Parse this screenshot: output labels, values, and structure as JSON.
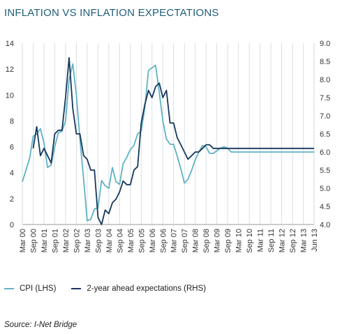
{
  "title": "INFLATION VS INFLATION EXPECTATIONS",
  "source": "Source: I-Net Bridge",
  "colors": {
    "cpi": "#5eb3c2",
    "expectations": "#17365d",
    "grid": "#cfd8dc",
    "title": "#1f5e7a"
  },
  "chart_data": {
    "type": "line",
    "title": "INFLATION VS INFLATION EXPECTATIONS",
    "categories": [
      "Mar 00",
      "Sep 00",
      "Mar 01",
      "Sep 01",
      "Mar 02",
      "Sep 02",
      "Mar 03",
      "Sep 03",
      "Mar 04",
      "Sep 04",
      "Mar 05",
      "Sep 05",
      "Mar 06",
      "Sep 06",
      "Mar 07",
      "Sep 07",
      "Mar 08",
      "Sep 08",
      "Mar 09",
      "Sep 09",
      "Mar 10",
      "Sep 10",
      "Mar 11",
      "Sep 11",
      "Mar 12",
      "Sep 12",
      "Mar 13",
      "Jun 13"
    ],
    "y_left": {
      "ticks": [
        0,
        2,
        4,
        6,
        8,
        10,
        12,
        14
      ],
      "ylim": [
        0,
        14
      ]
    },
    "y_right": {
      "ticks": [
        "4.0",
        "4.5",
        "5.0",
        "5.5",
        "6.0",
        "6.5",
        "7.0",
        "7.5",
        "8.0",
        "8.5",
        "9.0"
      ],
      "ylim": [
        4.0,
        9.0
      ]
    },
    "grid": "vertical",
    "legend_position": "bottom-left",
    "series": [
      {
        "name": "CPI (LHS)",
        "axis": "left",
        "x": [
          0,
          0.67,
          1.0,
          1.33,
          1.67,
          2.0,
          2.33,
          2.67,
          3.0,
          3.33,
          3.67,
          4.0,
          4.33,
          4.67,
          5.0,
          5.33,
          5.67,
          6.0,
          6.33,
          6.67,
          7.0,
          7.33,
          7.67,
          8.0,
          8.33,
          8.67,
          9.0,
          9.33,
          9.67,
          10.0,
          10.33,
          10.67,
          11.0,
          11.33,
          11.67,
          12.0,
          12.33,
          12.67,
          13.0,
          13.33,
          13.67,
          14.0,
          14.33,
          14.67,
          15.0,
          15.33,
          15.67,
          16.0,
          16.33,
          16.67,
          17.0,
          17.33,
          17.67,
          18.0,
          18.33,
          18.67,
          19.0,
          19.33,
          19.67,
          20.0,
          20.33,
          20.67,
          21.0,
          21.33,
          21.67,
          22.0,
          22.33,
          22.67,
          23.0,
          23.33,
          23.67,
          24.0,
          24.33,
          24.67,
          25.0,
          25.33,
          25.67,
          26.0,
          26.33,
          26.67,
          27.0
        ],
        "values": [
          3.3,
          5.1,
          6.8,
          7.0,
          7.4,
          6.3,
          4.4,
          4.6,
          6.0,
          7.1,
          7.2,
          8.0,
          11.2,
          12.4,
          10.0,
          6.6,
          3.5,
          0.3,
          0.4,
          1.2,
          1.3,
          3.4,
          3.0,
          2.8,
          4.4,
          3.3,
          3.1,
          4.7,
          5.2,
          5.8,
          6.1,
          7.0,
          7.2,
          9.0,
          11.9,
          12.1,
          12.3,
          10.2,
          8.0,
          6.6,
          6.2,
          6.2,
          5.3,
          4.3,
          3.2,
          3.5,
          4.2,
          5.0,
          5.6,
          6.1,
          6.0,
          5.5,
          5.5,
          5.7,
          5.9,
          6.0,
          5.9,
          5.6,
          5.6,
          5.6,
          5.6,
          5.6,
          5.6,
          5.6,
          5.6,
          5.6,
          5.6,
          5.6,
          5.6,
          5.6,
          5.6,
          5.6,
          5.6,
          5.6,
          5.6,
          5.6,
          5.6,
          5.6,
          5.6,
          5.6,
          5.6
        ]
      },
      {
        "name": "2-year ahead expectations (RHS)",
        "axis": "right",
        "x": [
          1.0,
          1.33,
          1.67,
          2.0,
          2.33,
          2.67,
          3.0,
          3.33,
          3.67,
          4.0,
          4.33,
          4.67,
          5.0,
          5.33,
          5.67,
          6.0,
          6.33,
          6.67,
          7.0,
          7.33,
          7.67,
          8.0,
          8.33,
          8.67,
          9.0,
          9.33,
          9.67,
          10.0,
          10.33,
          10.67,
          11.0,
          11.33,
          11.67,
          12.0,
          12.33,
          12.67,
          13.0,
          13.33,
          13.67,
          14.0,
          14.33,
          14.67,
          15.0,
          15.33,
          15.67,
          16.0,
          16.33,
          16.67,
          17.0,
          17.33,
          17.67,
          18.0,
          18.33,
          18.67,
          19.0,
          19.33,
          19.67,
          20.0,
          20.33,
          20.67,
          21.0,
          21.33,
          21.67,
          22.0,
          22.33,
          22.67,
          23.0,
          23.33,
          23.67,
          24.0,
          24.33,
          24.67,
          25.0,
          25.33,
          25.67,
          26.0,
          26.33,
          26.67,
          27.0
        ],
        "values": [
          6.1,
          6.7,
          5.9,
          6.1,
          5.9,
          5.7,
          6.5,
          6.6,
          6.6,
          7.5,
          8.6,
          7.2,
          6.5,
          6.5,
          5.9,
          5.8,
          5.5,
          5.5,
          4.2,
          4.0,
          4.4,
          4.3,
          4.6,
          4.7,
          4.9,
          5.2,
          5.1,
          5.1,
          5.5,
          5.6,
          6.8,
          7.3,
          7.7,
          7.5,
          7.8,
          7.9,
          7.5,
          7.7,
          6.8,
          6.8,
          6.4,
          6.2,
          6.0,
          5.8,
          5.9,
          6.0,
          6.0,
          6.1,
          6.2,
          6.2,
          6.1,
          6.1,
          6.1,
          6.1,
          6.1,
          6.1,
          6.1,
          6.1,
          6.1,
          6.1,
          6.1,
          6.1,
          6.1,
          6.1,
          6.1,
          6.1,
          6.1,
          6.1,
          6.1,
          6.1,
          6.1,
          6.1,
          6.1,
          6.1,
          6.1,
          6.1,
          6.1,
          6.1,
          6.1
        ]
      }
    ]
  },
  "legend": [
    {
      "label": "CPI (LHS)"
    },
    {
      "label": "2-year ahead expectations (RHS)"
    }
  ]
}
